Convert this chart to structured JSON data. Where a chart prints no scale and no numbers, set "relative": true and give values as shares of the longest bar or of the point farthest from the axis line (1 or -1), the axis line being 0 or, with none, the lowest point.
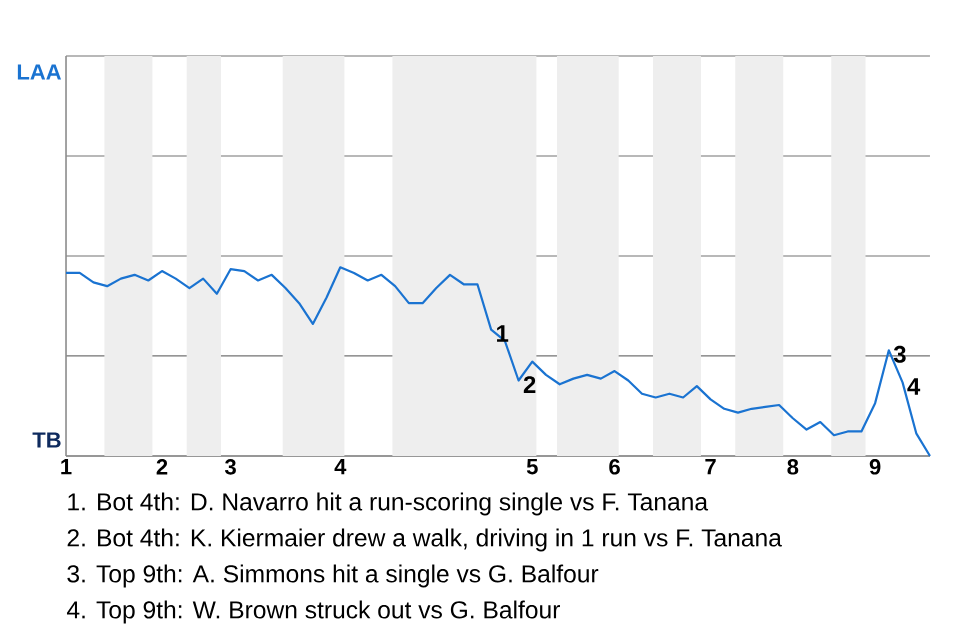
{
  "chart_data": {
    "type": "line",
    "grid": "y",
    "relative": true,
    "categories": [
      "1",
      null,
      null,
      null,
      null,
      null,
      null,
      "2",
      null,
      null,
      null,
      null,
      "3",
      null,
      null,
      null,
      null,
      null,
      null,
      null,
      "4",
      null,
      null,
      null,
      null,
      null,
      null,
      null,
      null,
      null,
      null,
      null,
      null,
      null,
      "5",
      null,
      null,
      null,
      null,
      null,
      "6",
      null,
      null,
      null,
      null,
      null,
      null,
      "7",
      null,
      null,
      null,
      null,
      null,
      "8",
      null,
      null,
      null,
      null,
      null,
      "9",
      null,
      null,
      null,
      null
    ],
    "ylim": [
      0,
      2.12
    ],
    "series": [
      {
        "color": "#1a73d1",
        "values": [
          0.97,
          0.97,
          0.92,
          0.9,
          0.94,
          0.96,
          0.93,
          0.98,
          0.94,
          0.89,
          0.94,
          0.86,
          0.99,
          0.98,
          0.93,
          0.96,
          0.89,
          0.81,
          0.7,
          0.84,
          1,
          0.97,
          0.93,
          0.96,
          0.9,
          0.81,
          0.81,
          0.89,
          0.96,
          0.91,
          0.91,
          0.67,
          0.61,
          0.4,
          0.5,
          0.43,
          0.38,
          0.41,
          0.43,
          0.41,
          0.45,
          0.4,
          0.33,
          0.31,
          0.33,
          0.31,
          0.37,
          0.3,
          0.25,
          0.23,
          0.25,
          0.26,
          0.27,
          0.2,
          0.14,
          0.18,
          0.11,
          0.13,
          0.13,
          0.28,
          0.56,
          0.39,
          0.12,
          0
        ]
      }
    ],
    "annotations": [
      "LAA",
      "TB",
      {
        "text": "1",
        "y": 0.67
      },
      {
        "text": "2",
        "y": 0.4
      },
      {
        "text": "3",
        "y": 0.56
      },
      {
        "text": "4",
        "y": 0.39
      },
      "1. Bot 4th: D. Navarro hit a run-scoring single vs F. Tanana",
      "2. Bot 4th: K. Kiermaier drew a walk, driving in 1 run vs F. Tanana",
      "3. Top 9th: A. Simmons hit a single vs G. Balfour",
      "4. Top 9th: W. Brown struck out vs G. Balfour"
    ]
  }
}
